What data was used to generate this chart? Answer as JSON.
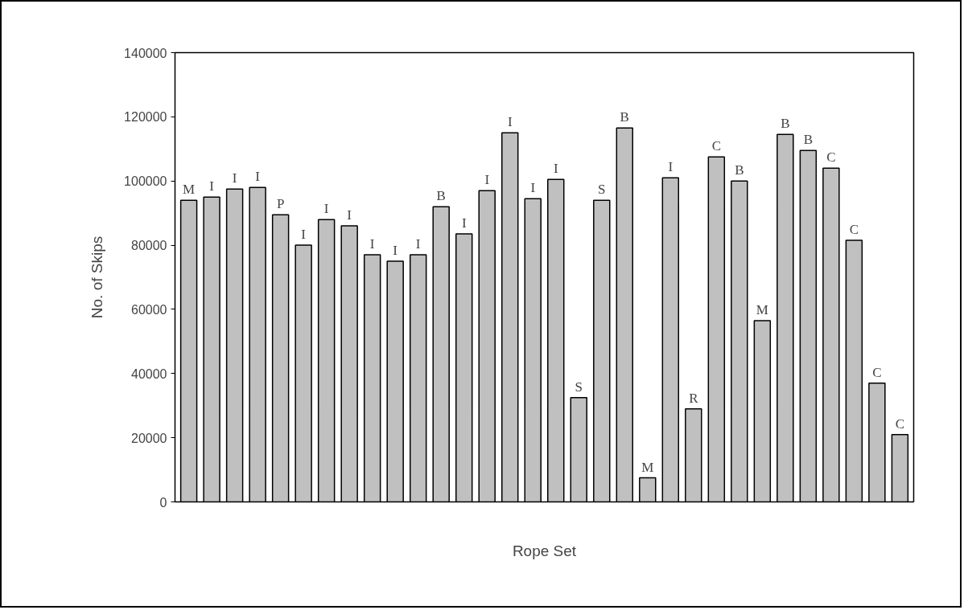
{
  "chart_data": {
    "type": "bar",
    "xlabel": "Rope Set",
    "ylabel": "No. of Skips",
    "categories": [
      null,
      null,
      null,
      null,
      null,
      null,
      null,
      null,
      null,
      null,
      null,
      null,
      null,
      null,
      null,
      null,
      null,
      null,
      null,
      null,
      null,
      null,
      null,
      null,
      null,
      null,
      null,
      null,
      null,
      null,
      null,
      null
    ],
    "values": [
      94000,
      95000,
      97500,
      98000,
      89500,
      80000,
      88000,
      86000,
      77000,
      75000,
      77000,
      92000,
      83500,
      97000,
      115000,
      94500,
      100500,
      32500,
      94000,
      116500,
      7500,
      101000,
      29000,
      107500,
      100000,
      56500,
      114500,
      109500,
      104000,
      81500,
      37000,
      21000
    ],
    "value_labels": [
      "M",
      "I",
      "I",
      "I",
      "P",
      "I",
      "I",
      "I",
      "I",
      "I",
      "I",
      "B",
      "I",
      "I",
      "I",
      "I",
      "I",
      "S",
      "S",
      "B",
      "M",
      "I",
      "R",
      "C",
      "B",
      "M",
      "B",
      "B",
      "C",
      "C",
      "C",
      "C"
    ],
    "color": "#c0c0c0",
    "ylim": [
      0,
      140000
    ],
    "yticks": [
      0,
      20000,
      40000,
      60000,
      80000,
      100000,
      120000,
      140000
    ],
    "grid": false
  }
}
